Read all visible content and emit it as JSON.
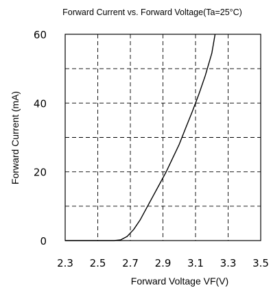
{
  "chart_data": {
    "type": "line",
    "title": "Forward Current vs. Forward Voltage(Ta=25°C)",
    "xlabel": "Forward Voltage  VF(V)",
    "ylabel": "Forward Current (mA)",
    "xlim": [
      2.3,
      3.5
    ],
    "ylim": [
      0,
      60
    ],
    "x_ticks": [
      2.3,
      2.5,
      2.7,
      2.9,
      3.1,
      3.3,
      3.5
    ],
    "x_tick_labels": [
      "2.3",
      "2.5",
      "2.7",
      "2.9",
      "3.1",
      "3.3",
      "3.5"
    ],
    "y_ticks": [
      0,
      20,
      40,
      60
    ],
    "y_tick_labels": [
      "0",
      "20",
      "40",
      "60"
    ],
    "x_grid": [
      2.5,
      2.7,
      2.9,
      3.1,
      3.3
    ],
    "y_grid": [
      10,
      20,
      30,
      40,
      50
    ],
    "grid": true,
    "grid_style": "dashed",
    "series": [
      {
        "color": "#000000",
        "x": [
          2.3,
          2.6,
          2.64,
          2.68,
          2.72,
          2.76,
          2.8,
          2.84,
          2.88,
          2.92,
          2.96,
          3.0,
          3.04,
          3.08,
          3.12,
          3.16,
          3.2,
          3.22
        ],
        "y": [
          0,
          0,
          0.2,
          1.2,
          3.2,
          6.0,
          9.5,
          13.0,
          16.5,
          20.0,
          24.0,
          28.0,
          32.8,
          37.5,
          42.5,
          48.0,
          54.5,
          60.0
        ]
      }
    ]
  }
}
